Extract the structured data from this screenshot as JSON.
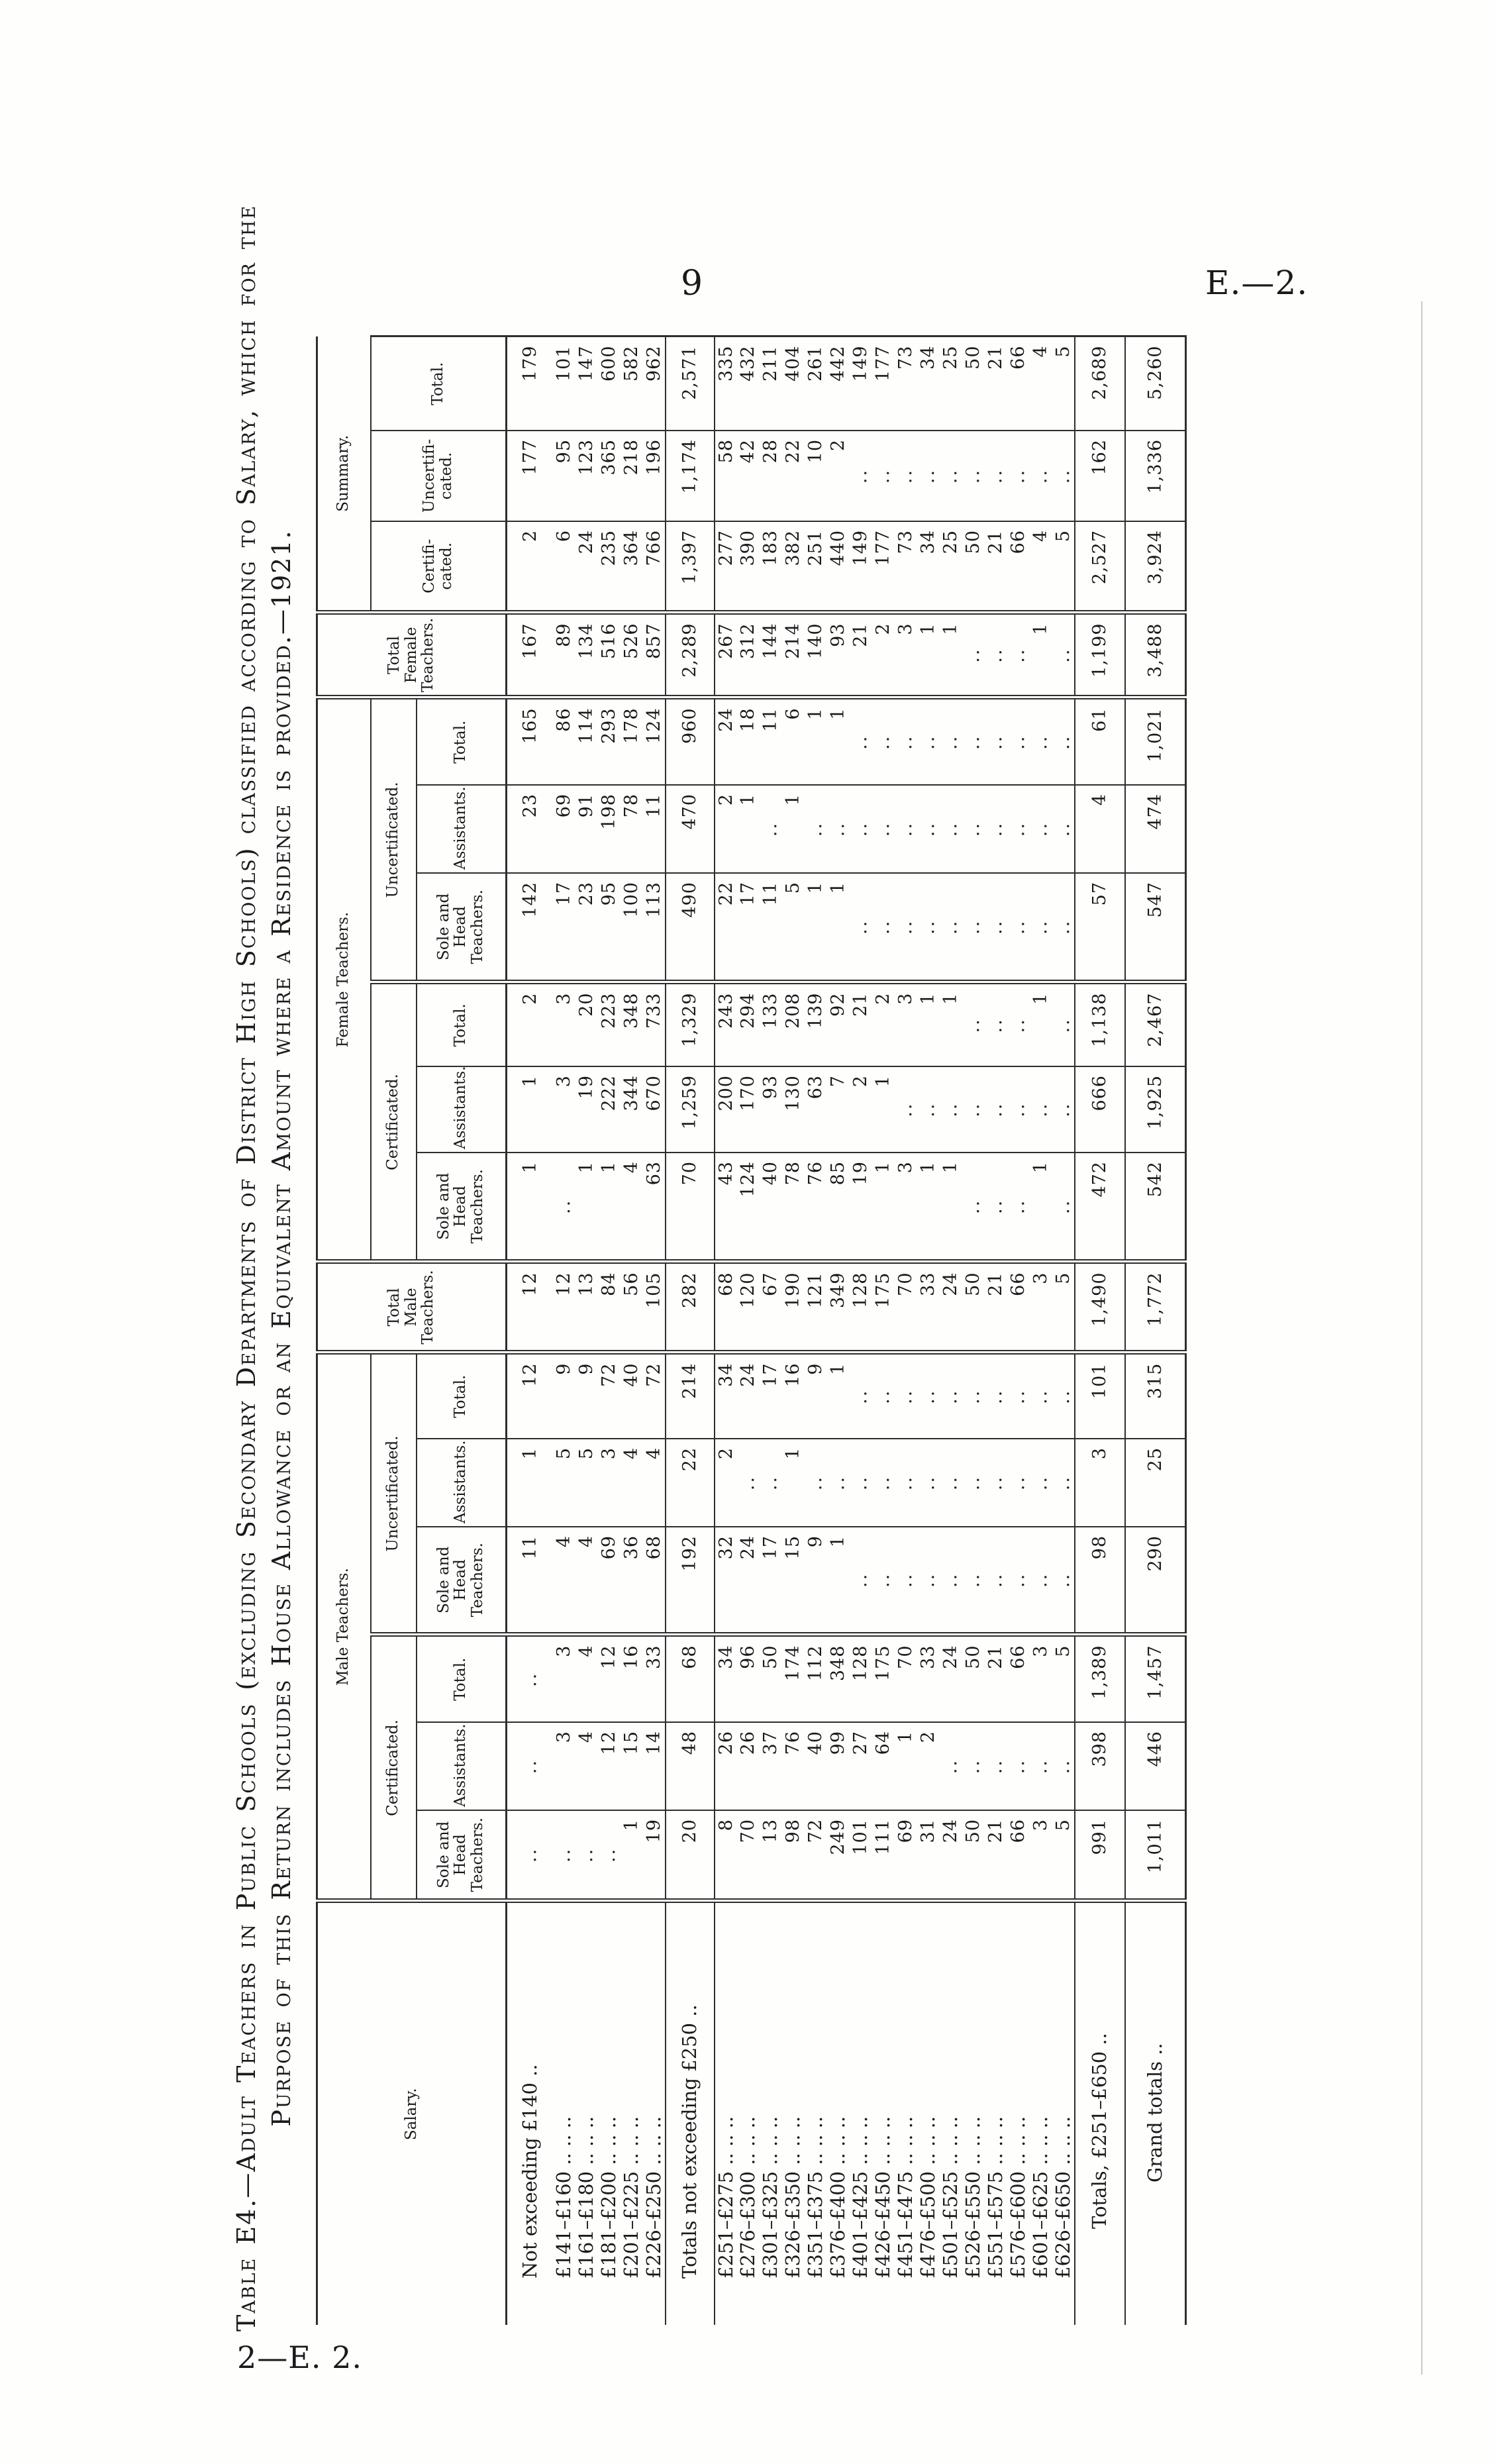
{
  "page": {
    "number": "9",
    "doc_ref": "E.—2.",
    "footer": "2—E. 2."
  },
  "title": {
    "line1": "Table E4.—Adult Teachers in Public Schools (excluding Secondary Departments of District High Schools) classified according to Salary, which for the",
    "line2": "Purpose of this Return includes House Allowance or an Equivalent Amount where a Residence is provided.—1921."
  },
  "table": {
    "header": {
      "salary": "Salary.",
      "male_group": "Male Teachers.",
      "female_group": "Female Teachers.",
      "summary_group": "Summary.",
      "certificated": "Certificated.",
      "uncertificated": "Uncertificated.",
      "sole_head": "Sole and\nHead\nTeachers.",
      "assistants": "Assistants.",
      "total": "Total.",
      "total_male": "Total\nMale\nTeachers.",
      "total_female": "Total\nFemale\nTeachers.",
      "summary_cert": "Certifi-\ncated.",
      "summary_uncert": "Uncertifi-\ncated.",
      "summary_total": "Total."
    },
    "columns": [
      "male_cert_sole_head",
      "male_cert_assistants",
      "male_cert_total",
      "male_uncert_sole_head",
      "male_uncert_assistants",
      "male_uncert_total",
      "total_male_teachers",
      "female_cert_sole_head",
      "female_cert_assistants",
      "female_cert_total",
      "female_uncert_sole_head",
      "female_uncert_assistants",
      "female_uncert_total",
      "total_female_teachers",
      "summary_certificated",
      "summary_uncertificated",
      "summary_total"
    ],
    "blank_mark": "..",
    "rows": [
      {
        "label": "Not exceeding £140 ..",
        "type": "data",
        "v": [
          "..",
          "..",
          "..",
          "11",
          "1",
          "12",
          "12",
          "1",
          "1",
          "2",
          "142",
          "23",
          "165",
          "167",
          "2",
          "177",
          "179"
        ]
      },
      {
        "label": "£141–£160 .. .. ..",
        "type": "data",
        "v": [
          "..",
          "3",
          "3",
          "4",
          "5",
          "9",
          "12",
          "..",
          "3",
          "3",
          "17",
          "69",
          "86",
          "89",
          "6",
          "95",
          "101"
        ]
      },
      {
        "label": "£161–£180 .. .. ..",
        "type": "data",
        "v": [
          "..",
          "4",
          "4",
          "4",
          "5",
          "9",
          "13",
          "1",
          "19",
          "20",
          "23",
          "91",
          "114",
          "134",
          "24",
          "123",
          "147"
        ]
      },
      {
        "label": "£181–£200 .. .. ..",
        "type": "data",
        "v": [
          "..",
          "12",
          "12",
          "69",
          "3",
          "72",
          "84",
          "1",
          "222",
          "223",
          "95",
          "198",
          "293",
          "516",
          "235",
          "365",
          "600"
        ]
      },
      {
        "label": "£201–£225 .. .. ..",
        "type": "data",
        "v": [
          "1",
          "15",
          "16",
          "36",
          "4",
          "40",
          "56",
          "4",
          "344",
          "348",
          "100",
          "78",
          "178",
          "526",
          "364",
          "218",
          "582"
        ]
      },
      {
        "label": "£226–£250 .. .. ..",
        "type": "data",
        "v": [
          "19",
          "14",
          "33",
          "68",
          "4",
          "72",
          "105",
          "63",
          "670",
          "733",
          "113",
          "11",
          "124",
          "857",
          "766",
          "196",
          "962"
        ]
      },
      {
        "label": "Totals not exceeding £250 ..",
        "type": "subtotal",
        "v": [
          "20",
          "48",
          "68",
          "192",
          "22",
          "214",
          "282",
          "70",
          "1,259",
          "1,329",
          "490",
          "470",
          "960",
          "2,289",
          "1,397",
          "1,174",
          "2,571"
        ]
      },
      {
        "label": "£251–£275 .. .. ..",
        "type": "data",
        "v": [
          "8",
          "26",
          "34",
          "32",
          "2",
          "34",
          "68",
          "43",
          "200",
          "243",
          "22",
          "2",
          "24",
          "267",
          "277",
          "58",
          "335"
        ]
      },
      {
        "label": "£276–£300 .. .. ..",
        "type": "data",
        "v": [
          "70",
          "26",
          "96",
          "24",
          "..",
          "24",
          "120",
          "124",
          "170",
          "294",
          "17",
          "1",
          "18",
          "312",
          "390",
          "42",
          "432"
        ]
      },
      {
        "label": "£301–£325 .. .. ..",
        "type": "data",
        "v": [
          "13",
          "37",
          "50",
          "17",
          "..",
          "17",
          "67",
          "40",
          "93",
          "133",
          "11",
          "..",
          "11",
          "144",
          "183",
          "28",
          "211"
        ]
      },
      {
        "label": "£326–£350 .. .. ..",
        "type": "data",
        "v": [
          "98",
          "76",
          "174",
          "15",
          "1",
          "16",
          "190",
          "78",
          "130",
          "208",
          "5",
          "1",
          "6",
          "214",
          "382",
          "22",
          "404"
        ]
      },
      {
        "label": "£351–£375 .. .. ..",
        "type": "data",
        "v": [
          "72",
          "40",
          "112",
          "9",
          "..",
          "9",
          "121",
          "76",
          "63",
          "139",
          "1",
          "..",
          "1",
          "140",
          "251",
          "10",
          "261"
        ]
      },
      {
        "label": "£376–£400 .. .. ..",
        "type": "data",
        "v": [
          "249",
          "99",
          "348",
          "1",
          "..",
          "1",
          "349",
          "85",
          "7",
          "92",
          "1",
          "..",
          "1",
          "93",
          "440",
          "2",
          "442"
        ]
      },
      {
        "label": "£401–£425 .. .. ..",
        "type": "data",
        "v": [
          "101",
          "27",
          "128",
          "..",
          "..",
          "..",
          "128",
          "19",
          "2",
          "21",
          "..",
          "..",
          "..",
          "21",
          "149",
          "..",
          "149"
        ]
      },
      {
        "label": "£426–£450 .. .. ..",
        "type": "data",
        "v": [
          "111",
          "64",
          "175",
          "..",
          "..",
          "..",
          "175",
          "1",
          "1",
          "2",
          "..",
          "..",
          "..",
          "2",
          "177",
          "..",
          "177"
        ]
      },
      {
        "label": "£451–£475 .. .. ..",
        "type": "data",
        "v": [
          "69",
          "1",
          "70",
          "..",
          "..",
          "..",
          "70",
          "3",
          "..",
          "3",
          "..",
          "..",
          "..",
          "3",
          "73",
          "..",
          "73"
        ]
      },
      {
        "label": "£476–£500 .. .. ..",
        "type": "data",
        "v": [
          "31",
          "2",
          "33",
          "..",
          "..",
          "..",
          "33",
          "1",
          "..",
          "1",
          "..",
          "..",
          "..",
          "1",
          "34",
          "..",
          "34"
        ]
      },
      {
        "label": "£501–£525 .. .. ..",
        "type": "data",
        "v": [
          "24",
          "..",
          "24",
          "..",
          "..",
          "..",
          "24",
          "1",
          "..",
          "1",
          "..",
          "..",
          "..",
          "1",
          "25",
          "..",
          "25"
        ]
      },
      {
        "label": "£526–£550 .. .. ..",
        "type": "data",
        "v": [
          "50",
          "..",
          "50",
          "..",
          "..",
          "..",
          "50",
          "..",
          "..",
          "..",
          "..",
          "..",
          "..",
          "..",
          "50",
          "..",
          "50"
        ]
      },
      {
        "label": "£551–£575 .. .. ..",
        "type": "data",
        "v": [
          "21",
          "..",
          "21",
          "..",
          "..",
          "..",
          "21",
          "..",
          "..",
          "..",
          "..",
          "..",
          "..",
          "..",
          "21",
          "..",
          "21"
        ]
      },
      {
        "label": "£576–£600 .. .. ..",
        "type": "data",
        "v": [
          "66",
          "..",
          "66",
          "..",
          "..",
          "..",
          "66",
          "..",
          "..",
          "..",
          "..",
          "..",
          "..",
          "..",
          "66",
          "..",
          "66"
        ]
      },
      {
        "label": "£601–£625 .. .. ..",
        "type": "data",
        "v": [
          "3",
          "..",
          "3",
          "..",
          "..",
          "..",
          "3",
          "1",
          "..",
          "1",
          "..",
          "..",
          "..",
          "1",
          "4",
          "..",
          "4"
        ]
      },
      {
        "label": "£626–£650 .. .. ..",
        "type": "data",
        "v": [
          "5",
          "..",
          "5",
          "..",
          "..",
          "..",
          "5",
          "..",
          "..",
          "..",
          "..",
          "..",
          "..",
          "..",
          "5",
          "..",
          "5"
        ]
      },
      {
        "label": "Totals, £251–£650 ..",
        "type": "subtotal",
        "v": [
          "991",
          "398",
          "1,389",
          "98",
          "3",
          "101",
          "1,490",
          "472",
          "666",
          "1,138",
          "57",
          "4",
          "61",
          "1,199",
          "2,527",
          "162",
          "2,689"
        ]
      },
      {
        "label": "Grand totals ..",
        "type": "grand",
        "v": [
          "1,011",
          "446",
          "1,457",
          "290",
          "25",
          "315",
          "1,772",
          "542",
          "1,925",
          "2,467",
          "547",
          "474",
          "1,021",
          "3,488",
          "3,924",
          "1,336",
          "5,260"
        ]
      }
    ]
  }
}
